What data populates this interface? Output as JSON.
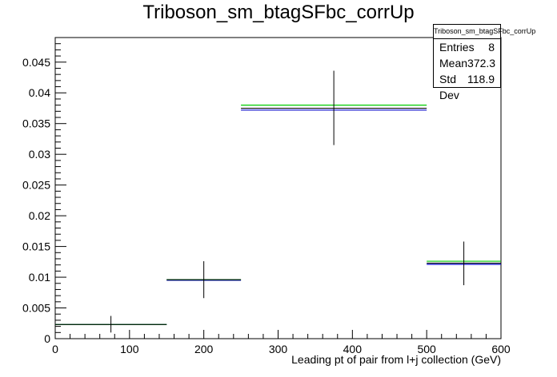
{
  "chart_data": {
    "type": "histogram",
    "title": "Triboson_sm_btagSFbc_corrUp",
    "xlabel": "Leading pt of pair from l+j collection (GeV)",
    "ylabel": "",
    "xlim": [
      0,
      600
    ],
    "ylim": [
      0,
      0.049
    ],
    "x_ticks": [
      0,
      100,
      200,
      300,
      400,
      500,
      600
    ],
    "y_ticks": [
      0,
      0.005,
      0.01,
      0.015,
      0.02,
      0.025,
      0.03,
      0.035,
      0.04,
      0.045
    ],
    "x_tick_labels": [
      "0",
      "100",
      "200",
      "300",
      "400",
      "500",
      "600"
    ],
    "y_tick_labels": [
      "0",
      "0.005",
      "0.01",
      "0.015",
      "0.02",
      "0.025",
      "0.03",
      "0.035",
      "0.04",
      "0.045"
    ],
    "bins": [
      {
        "x_low": 0,
        "x_high": 150,
        "center": 75,
        "nominal": 0.0023,
        "up": 0.0023,
        "down": 0.0023,
        "err_low": 0.001,
        "err_high": 0.0037
      },
      {
        "x_low": 150,
        "x_high": 250,
        "center": 200,
        "nominal": 0.0096,
        "up": 0.0096,
        "down": 0.0095,
        "err_low": 0.0066,
        "err_high": 0.0126
      },
      {
        "x_low": 250,
        "x_high": 500,
        "center": 375,
        "nominal": 0.0375,
        "up": 0.038,
        "down": 0.0372,
        "err_low": 0.0315,
        "err_high": 0.0436
      },
      {
        "x_low": 500,
        "x_high": 600,
        "center": 550,
        "nominal": 0.0123,
        "up": 0.0126,
        "down": 0.0121,
        "err_low": 0.0087,
        "err_high": 0.0158
      }
    ],
    "series_colors": {
      "nominal": "#000000",
      "up": "#00cc00",
      "down": "#0000cc"
    },
    "grid": false,
    "legend": "none"
  },
  "stats": {
    "title": "Triboson_sm_btagSFbc_corrUp",
    "rows": [
      {
        "label": "Entries",
        "value": "8"
      },
      {
        "label": "Mean",
        "value": "372.3"
      },
      {
        "label": "Std Dev",
        "value": "118.9"
      }
    ]
  }
}
